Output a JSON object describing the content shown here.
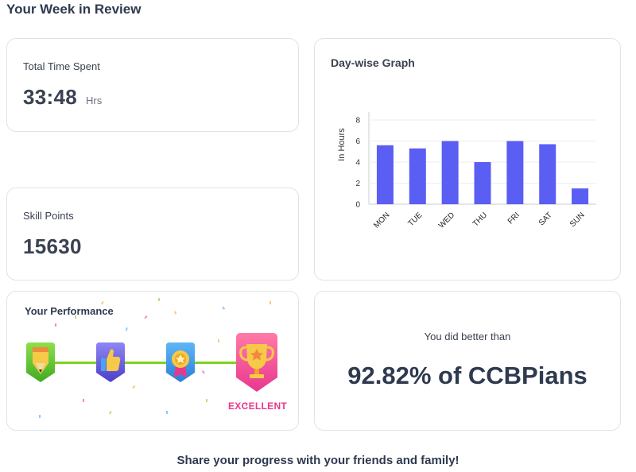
{
  "page": {
    "title": "Your Week in Review"
  },
  "time_card": {
    "label": "Total Time Spent",
    "value": "33:48",
    "unit": "Hrs"
  },
  "skill_card": {
    "label": "Skill Points",
    "value": "15630"
  },
  "graph_card": {
    "title": "Day-wise Graph"
  },
  "chart_data": {
    "type": "bar",
    "categories": [
      "MON",
      "TUE",
      "WED",
      "THU",
      "FRI",
      "SAT",
      "SUN"
    ],
    "values": [
      5.6,
      5.3,
      6.0,
      4.0,
      6.0,
      5.7,
      1.5
    ],
    "xlabel": "",
    "ylabel": "In Hours",
    "ylim": [
      0,
      8
    ],
    "yticks": [
      0,
      2,
      4,
      6,
      8
    ],
    "grid": true,
    "bar_color": "#5b5ef2"
  },
  "performance": {
    "title": "Your Performance",
    "badges": [
      "pencil-badge-icon",
      "thumbs-up-badge-icon",
      "medal-badge-icon",
      "trophy-badge-icon"
    ],
    "level": "EXCELLENT",
    "level_color": "#e8388d",
    "progress_color": "#7ed321"
  },
  "comparison": {
    "label": "You did better than",
    "percent": "92.82%",
    "suffix": " of CCBPians"
  },
  "footer": {
    "share_text": "Share your progress with your friends and family!"
  }
}
